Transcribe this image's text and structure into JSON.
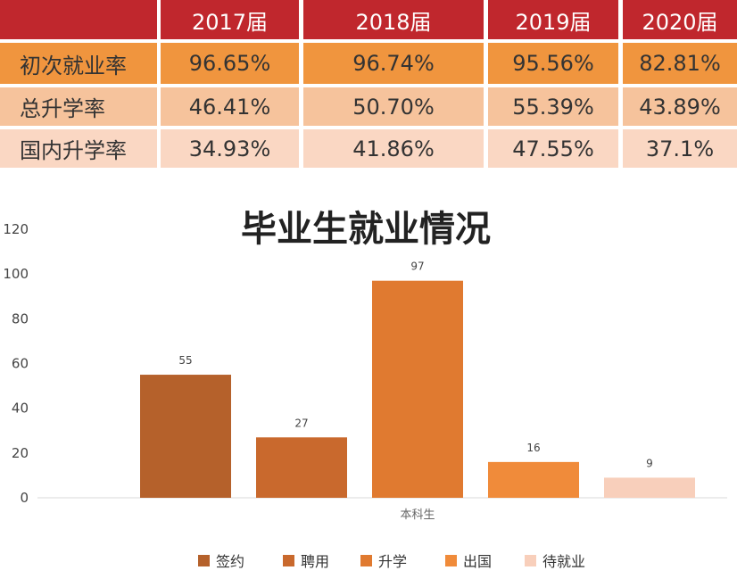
{
  "table": {
    "corner": "",
    "columns": [
      "2017届",
      "2018届",
      "2019届",
      "2020届"
    ],
    "rows": [
      {
        "label": "初次就业率",
        "values": [
          "96.65%",
          "96.74%",
          "95.56%",
          "82.81%"
        ]
      },
      {
        "label": "总升学率",
        "values": [
          "46.41%",
          "50.70%",
          "55.39%",
          "43.89%"
        ]
      },
      {
        "label": "国内升学率",
        "values": [
          "34.93%",
          "41.86%",
          "47.55%",
          "37.1%"
        ]
      }
    ],
    "colors": {
      "header": "#c0272d",
      "row1": "#f0953e",
      "row2": "#f6c39c",
      "row3": "#fad7c3"
    }
  },
  "chart_data": {
    "type": "bar",
    "title": "毕业生就业情况",
    "categories": [
      "本科生"
    ],
    "series": [
      {
        "name": "签约",
        "values": [
          55
        ],
        "color": "#b5612b"
      },
      {
        "name": "聘用",
        "values": [
          27
        ],
        "color": "#c9692d"
      },
      {
        "name": "升学",
        "values": [
          97
        ],
        "color": "#e07a30"
      },
      {
        "name": "出国",
        "values": [
          16
        ],
        "color": "#f08b3a"
      },
      {
        "name": "待就业",
        "values": [
          9
        ],
        "color": "#f8cfbb"
      }
    ],
    "ylim": [
      0,
      120
    ],
    "yticks": [
      0,
      20,
      40,
      60,
      80,
      100,
      120
    ],
    "grid": false,
    "legend": "bottom"
  }
}
